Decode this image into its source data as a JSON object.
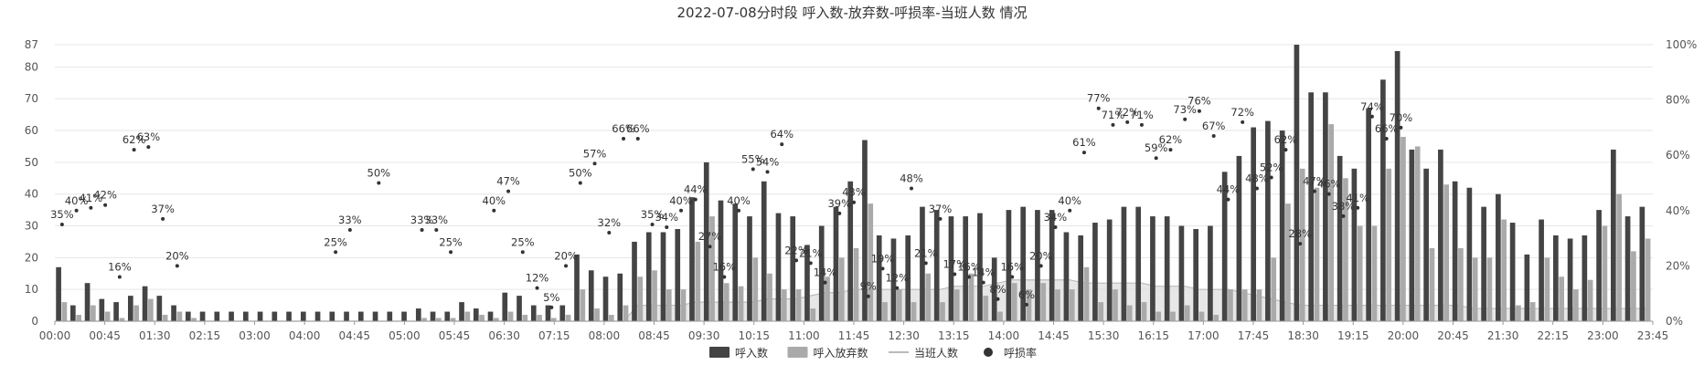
{
  "chart_data": {
    "type": "bar",
    "title": "2022-07-08分时段 呼入数-放弃数-呼损率-当班人数 情况",
    "left_axis_ticks": [
      0,
      10,
      20,
      30,
      40,
      50,
      60,
      70,
      80,
      87
    ],
    "right_axis_ticks": [
      "0%",
      "20%",
      "40%",
      "60%",
      "80%",
      "100%"
    ],
    "ylim": [
      0,
      87
    ],
    "y2lim": [
      0,
      100
    ],
    "x_tick_labels": [
      "00:00",
      "00:45",
      "01:30",
      "02:15",
      "03:00",
      "04:00",
      "04:45",
      "05:00",
      "05:45",
      "06:30",
      "07:15",
      "08:00",
      "08:45",
      "09:30",
      "10:15",
      "11:00",
      "11:45",
      "12:30",
      "13:15",
      "14:00",
      "14:45",
      "15:30",
      "16:15",
      "17:00",
      "17:45",
      "18:30",
      "19:15",
      "20:00",
      "20:45",
      "21:30",
      "22:15",
      "23:00",
      "23:45"
    ],
    "legend": [
      "呼入数",
      "呼入放弃数",
      "当班人数",
      "呼损率"
    ],
    "colors": {
      "calls": "#444444",
      "abandoned": "#aaaaaa",
      "staff_line": "#bbbbbb",
      "staff_fill": "#dddddd",
      "rate_dot": "#333333"
    },
    "series": [
      {
        "name": "呼入数",
        "values": [
          17,
          5,
          12,
          7,
          6,
          8,
          11,
          8,
          5,
          3,
          3,
          3,
          3,
          3,
          3,
          3,
          3,
          3,
          3,
          3,
          3,
          3,
          3,
          3,
          3,
          4,
          3,
          3,
          6,
          4,
          3,
          9,
          8,
          5,
          5,
          5,
          21,
          16,
          14,
          15,
          25,
          28,
          28,
          29,
          39,
          50,
          38,
          37,
          33,
          44,
          34,
          33,
          24,
          30,
          36,
          44,
          57,
          27,
          26,
          27,
          36,
          35,
          33,
          33,
          34,
          20,
          35,
          36,
          35,
          35,
          28,
          27,
          31,
          32,
          36,
          36,
          33,
          33,
          30,
          29,
          30,
          47,
          52,
          61,
          63,
          60,
          87,
          72,
          72,
          52,
          48,
          67,
          76,
          85,
          54,
          48,
          54,
          44,
          42,
          36,
          40,
          31,
          21,
          32,
          27,
          26,
          27,
          35,
          54,
          33,
          36
        ],
        "color": "#444444"
      },
      {
        "name": "呼入放弃数",
        "values": [
          6,
          2,
          5,
          3,
          1,
          5,
          7,
          2,
          3,
          1,
          0,
          0,
          0,
          0,
          0,
          0,
          0,
          0,
          0,
          0,
          0,
          0,
          0,
          0,
          0,
          1,
          1,
          1,
          3,
          2,
          1,
          3,
          2,
          2,
          1,
          2,
          10,
          4,
          2,
          5,
          14,
          16,
          10,
          10,
          25,
          33,
          12,
          11,
          20,
          15,
          10,
          10,
          4,
          14,
          20,
          23,
          37,
          6,
          10,
          6,
          15,
          6,
          10,
          15,
          8,
          3,
          12,
          10,
          12,
          10,
          10,
          17,
          6,
          10,
          5,
          6,
          3,
          3,
          5,
          3,
          2,
          10,
          10,
          10,
          20,
          37,
          48,
          42,
          62,
          45,
          30,
          30,
          48,
          58,
          55,
          23,
          43,
          23,
          20,
          20,
          32,
          5,
          6,
          20,
          14,
          10,
          13,
          30,
          40,
          22,
          26
        ],
        "color": "#aaaaaa"
      },
      {
        "name": "当班人数",
        "values": [
          0,
          0,
          0,
          0,
          0,
          0,
          0,
          0,
          0,
          0,
          0,
          0,
          0,
          0,
          0,
          0,
          0,
          0,
          0,
          0,
          0,
          0,
          0,
          0,
          0,
          0,
          0,
          0,
          0,
          0,
          0,
          0,
          0,
          0,
          0,
          0,
          0,
          0,
          0,
          0,
          5,
          5,
          5,
          5,
          6,
          6,
          6,
          6,
          6,
          7,
          7,
          7,
          8,
          9,
          9,
          10,
          10,
          10,
          10,
          10,
          10,
          10,
          11,
          11,
          11,
          12,
          13,
          13,
          13,
          13,
          13,
          12,
          12,
          12,
          12,
          12,
          11,
          11,
          11,
          10,
          10,
          10,
          9,
          8,
          7,
          6,
          5,
          5,
          5,
          5,
          5,
          5,
          5,
          5,
          5,
          5,
          5,
          5,
          4,
          4,
          4,
          4,
          4,
          4,
          4,
          4,
          4,
          4,
          4,
          4,
          4
        ],
        "color": "#bbbbbb"
      },
      {
        "name": "呼损率",
        "points": [
          [
            0,
            35
          ],
          [
            1,
            40
          ],
          [
            2,
            41
          ],
          [
            3,
            42
          ],
          [
            4,
            16
          ],
          [
            5,
            62
          ],
          [
            6,
            63
          ],
          [
            7,
            37
          ],
          [
            8,
            20
          ],
          [
            19,
            25
          ],
          [
            20,
            33
          ],
          [
            22,
            50
          ],
          [
            25,
            33
          ],
          [
            26,
            33
          ],
          [
            27,
            25
          ],
          [
            30,
            40
          ],
          [
            31,
            47
          ],
          [
            32,
            25
          ],
          [
            33,
            12
          ],
          [
            34,
            5
          ],
          [
            35,
            20
          ],
          [
            36,
            50
          ],
          [
            37,
            57
          ],
          [
            38,
            32
          ],
          [
            39,
            66
          ],
          [
            40,
            66
          ],
          [
            41,
            35
          ],
          [
            42,
            34
          ],
          [
            43,
            40
          ],
          [
            44,
            44
          ],
          [
            45,
            27
          ],
          [
            46,
            16
          ],
          [
            47,
            40
          ],
          [
            48,
            55
          ],
          [
            49,
            54
          ],
          [
            50,
            64
          ],
          [
            51,
            22
          ],
          [
            52,
            21
          ],
          [
            53,
            14
          ],
          [
            54,
            39
          ],
          [
            55,
            43
          ],
          [
            56,
            9
          ],
          [
            57,
            19
          ],
          [
            58,
            12
          ],
          [
            59,
            48
          ],
          [
            60,
            21
          ],
          [
            61,
            37
          ],
          [
            62,
            17
          ],
          [
            63,
            16
          ],
          [
            64,
            14
          ],
          [
            65,
            8
          ],
          [
            66,
            16
          ],
          [
            67,
            6
          ],
          [
            68,
            20
          ],
          [
            69,
            34
          ],
          [
            70,
            40
          ],
          [
            71,
            61
          ],
          [
            72,
            77
          ],
          [
            73,
            71
          ],
          [
            74,
            72
          ],
          [
            75,
            71
          ],
          [
            76,
            59
          ],
          [
            77,
            62
          ],
          [
            78,
            73
          ],
          [
            79,
            76
          ],
          [
            80,
            67
          ],
          [
            81,
            44
          ],
          [
            82,
            72
          ],
          [
            83,
            48
          ],
          [
            84,
            52
          ],
          [
            85,
            62
          ],
          [
            86,
            28
          ],
          [
            87,
            47
          ],
          [
            88,
            46
          ],
          [
            89,
            38
          ],
          [
            90,
            41
          ],
          [
            91,
            74
          ],
          [
            92,
            66
          ],
          [
            93,
            70
          ]
        ],
        "color": "#333333"
      }
    ]
  }
}
